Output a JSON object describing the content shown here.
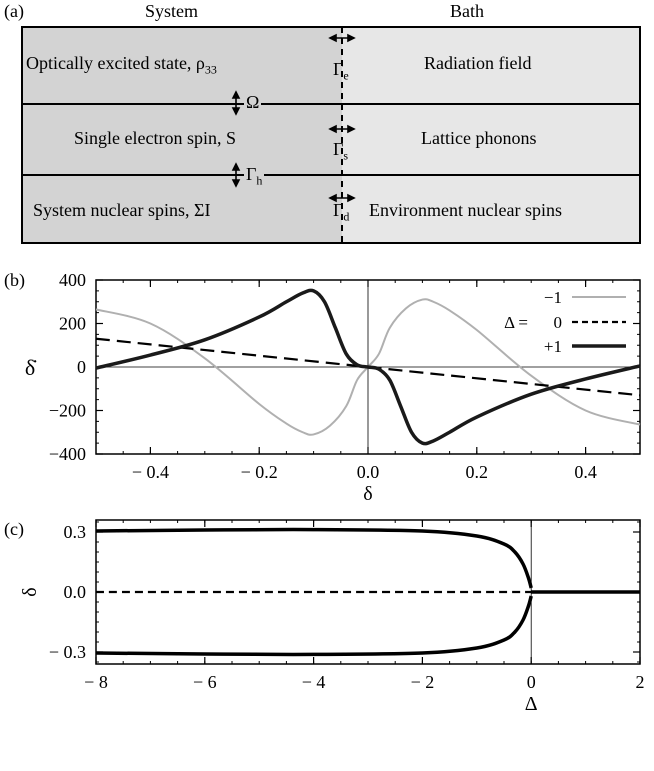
{
  "panel_a": {
    "letter": "(a)",
    "system_header": "System",
    "bath_header": "Bath",
    "rows": [
      {
        "system": "Optically excited state, ρ",
        "system_sub": "33",
        "bath": "Radiation field",
        "gamma": "Γ",
        "gamma_sub": "e"
      },
      {
        "system": "Single electron spin, S",
        "system_sub": "",
        "bath": "Lattice phonons",
        "gamma": "Γ",
        "gamma_sub": "s"
      },
      {
        "system": "System nuclear spins, ΣI",
        "system_sub": "",
        "bath": "Environment nuclear spins",
        "gamma": "Γ",
        "gamma_sub": "d"
      }
    ],
    "couplings": [
      {
        "symbol": "Ω",
        "sub": ""
      },
      {
        "symbol": "Γ",
        "sub": "h"
      }
    ],
    "colors": {
      "system_fill": "#d3d3d3",
      "bath_fill": "#e7e7e7",
      "border": "#000000"
    }
  },
  "panel_b": {
    "letter": "(b)",
    "legend_prefix": "Δ =",
    "legend_entries": [
      "−1",
      "0",
      "+1"
    ]
  },
  "panel_c": {
    "letter": "(c)"
  },
  "chart_data": [
    {
      "type": "line",
      "panel": "(b)",
      "xlabel": "δ",
      "ylabel": "δ̇",
      "xlim": [
        -0.5,
        0.5
      ],
      "ylim": [
        -400,
        400
      ],
      "xticks": [
        "− 0.4",
        "− 0.2",
        "0.0",
        "0.2",
        "0.4"
      ],
      "xtick_values": [
        -0.4,
        -0.2,
        0.0,
        0.2,
        0.4
      ],
      "yticks": [
        "400",
        "200",
        "0",
        "−200",
        "−400"
      ],
      "ytick_values": [
        400,
        200,
        0,
        -200,
        -400
      ],
      "legend_placement": "right",
      "series": [
        {
          "name": "−1",
          "color": "#b0b0b0",
          "style": "solid",
          "x": [
            -0.5,
            -0.4,
            -0.3,
            -0.2,
            -0.15,
            -0.12,
            -0.1,
            -0.07,
            -0.04,
            -0.02,
            0,
            0.02,
            0.04,
            0.07,
            0.1,
            0.12,
            0.15,
            0.2,
            0.3,
            0.4,
            0.5
          ],
          "y": [
            265,
            200,
            40,
            -170,
            -260,
            -300,
            -310,
            -270,
            -180,
            -60,
            0,
            60,
            180,
            270,
            310,
            300,
            260,
            170,
            -40,
            -200,
            -265
          ]
        },
        {
          "name": "0",
          "color": "#000000",
          "style": "dashed",
          "x": [
            -0.5,
            0.5
          ],
          "y": [
            130,
            -130
          ]
        },
        {
          "name": "+1",
          "color": "#1a1a1a",
          "style": "solid-thick",
          "x": [
            -0.5,
            -0.4,
            -0.3,
            -0.2,
            -0.15,
            -0.12,
            -0.1,
            -0.08,
            -0.06,
            -0.04,
            -0.02,
            0,
            0.02,
            0.04,
            0.06,
            0.08,
            0.1,
            0.12,
            0.15,
            0.2,
            0.3,
            0.4,
            0.5
          ],
          "y": [
            -5,
            55,
            125,
            230,
            300,
            340,
            350,
            300,
            180,
            60,
            10,
            0,
            -10,
            -60,
            -180,
            -300,
            -350,
            -340,
            -300,
            -230,
            -125,
            -55,
            5
          ]
        }
      ]
    },
    {
      "type": "line",
      "panel": "(c)",
      "xlabel": "Δ",
      "ylabel": "δ",
      "xlim": [
        -8,
        2
      ],
      "ylim": [
        -0.36,
        0.36
      ],
      "xticks": [
        "− 8",
        "− 6",
        "− 4",
        "− 2",
        "0",
        "2"
      ],
      "xtick_values": [
        -8,
        -6,
        -4,
        -2,
        0,
        2
      ],
      "yticks": [
        "0.3",
        "0.0",
        "− 0.3"
      ],
      "ytick_values": [
        0.3,
        0.0,
        -0.3
      ],
      "series": [
        {
          "stability": "stable",
          "style": "solid-thick",
          "x": [
            -8,
            -6,
            -4,
            -2,
            -1,
            -0.5,
            -0.3,
            -0.15,
            -0.05,
            0
          ],
          "y": [
            0.305,
            0.31,
            0.312,
            0.305,
            0.28,
            0.24,
            0.2,
            0.14,
            0.07,
            0.02
          ]
        },
        {
          "stability": "stable",
          "style": "solid-thick",
          "x": [
            -8,
            -6,
            -4,
            -2,
            -1,
            -0.5,
            -0.3,
            -0.15,
            -0.05,
            0
          ],
          "y": [
            -0.305,
            -0.31,
            -0.312,
            -0.305,
            -0.28,
            -0.24,
            -0.2,
            -0.14,
            -0.07,
            -0.02
          ]
        },
        {
          "stability": "unstable",
          "style": "dashed",
          "x": [
            -8,
            0
          ],
          "y": [
            0,
            0
          ]
        },
        {
          "stability": "stable",
          "style": "solid-thick",
          "x": [
            0,
            2
          ],
          "y": [
            0,
            0
          ]
        }
      ]
    }
  ]
}
